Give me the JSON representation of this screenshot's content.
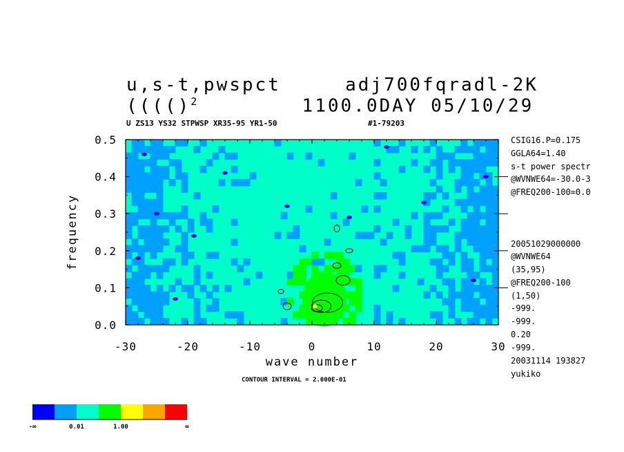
{
  "title": {
    "line1_left": "u,s-t,pwspct",
    "line1_right": "adj700fqradl-2K",
    "line2_left": "(((()",
    "line2_sup": "2",
    "line2_right": "1100.0DAY 05/10/29"
  },
  "subtitle": {
    "left": "U ZS13 YS32 STPWSP XR35-95 YR1-50",
    "right": "#1-79203"
  },
  "side_info": [
    "CSIG16.P=0.175",
    "GGLA64=1.40",
    "s-t power spectr",
    "@WVNWE64=-30.0-3",
    "@FREQ200-100=0.0",
    "20051029000000",
    "@WVNWE64",
    "(35,95)",
    "@FREQ200-100",
    "(1,50)",
    "-999.",
    "-999.",
    "0.20",
    "-999.",
    "20031114 193827",
    "yukiko"
  ],
  "contour_label": "CONTOUR INTERVAL = 2.000E-01",
  "colorbar": {
    "colors": [
      "#0000ff",
      "#00a0ff",
      "#00ffc8",
      "#00ff00",
      "#ffff00",
      "#ffa500",
      "#ff0000"
    ],
    "labels": [
      "-∞",
      "0.01",
      "1.00",
      "∞"
    ]
  },
  "chart_data": {
    "type": "heatmap",
    "title": "u,s-t,pwspct  adj700fqradl-2K",
    "xlabel": "wave number",
    "ylabel": "frequency",
    "xlim": [
      -30,
      30
    ],
    "ylim": [
      0,
      0.5
    ],
    "x_ticks": [
      -30,
      -20,
      -10,
      0,
      10,
      20,
      30
    ],
    "x_tick_labels": [
      "-30",
      "-20",
      "-10",
      "0",
      "10",
      "20",
      "30"
    ],
    "y_ticks": [
      0.0,
      0.1,
      0.2,
      0.3,
      0.4,
      0.5
    ],
    "y_tick_labels": [
      "0.0",
      "0.1",
      "0.2",
      "0.3",
      "0.4",
      "0.5"
    ],
    "colors": {
      "low": "#00a0ff",
      "mid": "#00ffc8",
      "high": "#00ff00",
      "min": "#0000ff",
      "peak": "#ffff00"
    },
    "features": {
      "background_level": "0.01 to 1.00 (cyan) over central band, below 0.01 (blue) at edges",
      "peak_region": {
        "wavenumber": [
          -5,
          8
        ],
        "frequency": [
          0.0,
          0.25
        ]
      },
      "max_wavenumber": 0.5,
      "max_frequency": 0.05
    }
  }
}
